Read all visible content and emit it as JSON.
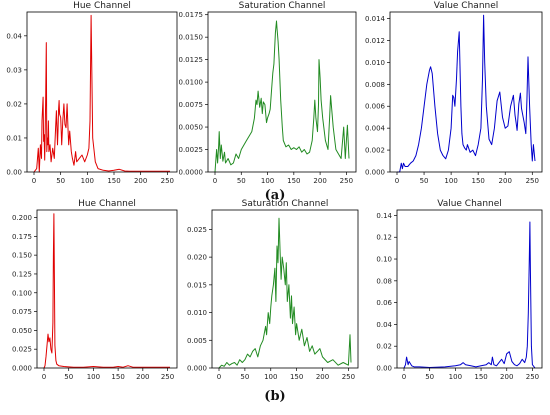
{
  "captions": {
    "top": "(a)",
    "bottom": "(b)"
  },
  "chart_data": [
    {
      "type": "line",
      "title": "Hue Channel",
      "color": "#e00000",
      "xlim": [
        0,
        255
      ],
      "ylim": [
        0,
        0.047
      ],
      "xticks": [
        0,
        50,
        100,
        150,
        200,
        250
      ],
      "yticks": [
        0.0,
        0.01,
        0.02,
        0.03,
        0.04
      ],
      "ytick_labels": [
        "0.00",
        "0.01",
        "0.02",
        "0.03",
        "0.04"
      ],
      "series": [
        {
          "x": [
            0,
            5,
            8,
            10,
            12,
            14,
            15,
            17,
            18,
            19,
            20,
            21,
            22,
            23,
            24,
            25,
            26,
            27,
            28,
            30,
            32,
            35,
            38,
            40,
            42,
            44,
            45,
            46,
            47,
            48,
            50,
            52,
            54,
            56,
            58,
            60,
            62,
            64,
            65,
            67,
            70,
            72,
            75,
            78,
            80,
            85,
            90,
            95,
            100,
            103,
            105,
            107,
            110,
            115,
            120,
            130,
            140,
            150,
            160,
            170,
            180,
            190,
            200,
            210,
            220,
            230,
            240,
            250,
            255
          ],
          "y": [
            0.0,
            0.001,
            0.007,
            0.0,
            0.008,
            0.004,
            0.015,
            0.022,
            0.009,
            0.011,
            0.0035,
            0.012,
            0.022,
            0.038,
            0.006,
            0.01,
            0.008,
            0.015,
            0.006,
            0.008,
            0.003,
            0.007,
            0.004,
            0.011,
            0.018,
            0.008,
            0.012,
            0.018,
            0.021,
            0.017,
            0.016,
            0.008,
            0.015,
            0.02,
            0.014,
            0.013,
            0.02,
            0.012,
            0.008,
            0.012,
            0.006,
            0.004,
            0.002,
            0.006,
            0.003,
            0.004,
            0.005,
            0.003,
            0.005,
            0.007,
            0.015,
            0.046,
            0.01,
            0.003,
            0.001,
            0.0005,
            0.0003,
            0.0005,
            0.0008,
            0.0003,
            0.0002,
            0.0002,
            0.0002,
            0.0002,
            0.0002,
            0.0002,
            0.0002,
            0.0002,
            0.0002
          ]
        }
      ]
    },
    {
      "type": "line",
      "title": "Saturation Channel",
      "color": "#228b22",
      "xlim": [
        0,
        255
      ],
      "ylim": [
        0,
        0.0178
      ],
      "xticks": [
        0,
        50,
        100,
        150,
        200,
        250
      ],
      "yticks": [
        0.0,
        0.0025,
        0.005,
        0.0075,
        0.01,
        0.0125,
        0.015,
        0.0175
      ],
      "ytick_labels": [
        "0.0000",
        "0.0025",
        "0.0050",
        "0.0075",
        "0.0100",
        "0.0125",
        "0.0150",
        "0.0175"
      ],
      "series": [
        {
          "x": [
            0,
            3,
            5,
            7,
            8,
            10,
            12,
            15,
            18,
            20,
            25,
            30,
            35,
            40,
            45,
            50,
            55,
            60,
            65,
            70,
            75,
            78,
            80,
            82,
            85,
            88,
            90,
            92,
            95,
            98,
            100,
            103,
            105,
            108,
            110,
            112,
            115,
            117,
            118,
            120,
            122,
            125,
            128,
            130,
            135,
            140,
            145,
            150,
            155,
            160,
            165,
            170,
            175,
            180,
            185,
            188,
            190,
            192,
            195,
            197,
            198,
            200,
            202,
            205,
            210,
            215,
            218,
            220,
            222,
            225,
            228,
            230,
            235,
            240,
            245,
            248,
            250,
            252,
            255
          ],
          "y": [
            0.0,
            0.0025,
            0.001,
            0.003,
            0.0045,
            0.0015,
            0.003,
            0.0012,
            0.0022,
            0.001,
            0.0015,
            0.0008,
            0.001,
            0.002,
            0.0015,
            0.0025,
            0.003,
            0.0035,
            0.004,
            0.0045,
            0.006,
            0.008,
            0.0075,
            0.009,
            0.0072,
            0.0082,
            0.0065,
            0.0078,
            0.0075,
            0.0055,
            0.006,
            0.0065,
            0.007,
            0.0095,
            0.011,
            0.012,
            0.0155,
            0.0168,
            0.016,
            0.0145,
            0.0125,
            0.008,
            0.005,
            0.0035,
            0.0028,
            0.003,
            0.0025,
            0.0027,
            0.0025,
            0.0028,
            0.0022,
            0.0025,
            0.002,
            0.0022,
            0.0035,
            0.006,
            0.008,
            0.006,
            0.0045,
            0.0075,
            0.0125,
            0.0105,
            0.008,
            0.006,
            0.0035,
            0.0025,
            0.006,
            0.0085,
            0.007,
            0.005,
            0.0035,
            0.0025,
            0.002,
            0.0015,
            0.005,
            0.0015,
            0.0035,
            0.0052,
            0.0015
          ]
        }
      ]
    },
    {
      "type": "line",
      "title": "Value Channel",
      "color": "#0000cc",
      "xlim": [
        0,
        255
      ],
      "ylim": [
        0,
        0.0146
      ],
      "xticks": [
        0,
        50,
        100,
        150,
        200,
        250
      ],
      "yticks": [
        0.0,
        0.002,
        0.004,
        0.006,
        0.008,
        0.01,
        0.012,
        0.014
      ],
      "ytick_labels": [
        "0.000",
        "0.002",
        "0.004",
        "0.006",
        "0.008",
        "0.010",
        "0.012",
        "0.014"
      ],
      "series": [
        {
          "x": [
            0,
            5,
            8,
            10,
            12,
            15,
            20,
            25,
            30,
            35,
            40,
            45,
            50,
            55,
            60,
            62,
            65,
            70,
            75,
            80,
            85,
            90,
            95,
            100,
            103,
            105,
            107,
            110,
            112,
            115,
            118,
            120,
            122,
            125,
            128,
            130,
            135,
            140,
            145,
            150,
            155,
            158,
            160,
            162,
            165,
            170,
            175,
            180,
            185,
            190,
            195,
            200,
            205,
            210,
            215,
            218,
            220,
            222,
            225,
            228,
            230,
            235,
            238,
            240,
            242,
            245,
            248,
            250,
            252,
            255
          ],
          "y": [
            0.0,
            0.0,
            0.0008,
            0.0003,
            0.0008,
            0.0005,
            0.0005,
            0.0008,
            0.001,
            0.0015,
            0.0025,
            0.004,
            0.006,
            0.008,
            0.0093,
            0.0096,
            0.009,
            0.006,
            0.0035,
            0.002,
            0.0015,
            0.0012,
            0.002,
            0.004,
            0.007,
            0.0068,
            0.006,
            0.0085,
            0.011,
            0.0128,
            0.006,
            0.0035,
            0.0025,
            0.0022,
            0.002,
            0.0025,
            0.0018,
            0.002,
            0.0015,
            0.0025,
            0.004,
            0.0085,
            0.0143,
            0.01,
            0.006,
            0.003,
            0.0025,
            0.004,
            0.0065,
            0.0073,
            0.005,
            0.004,
            0.0042,
            0.006,
            0.007,
            0.0052,
            0.0045,
            0.0038,
            0.0062,
            0.0072,
            0.0058,
            0.0045,
            0.0035,
            0.0065,
            0.0105,
            0.006,
            0.0025,
            0.001,
            0.0025,
            0.001
          ]
        }
      ]
    },
    {
      "type": "line",
      "title": "Hue Channel",
      "color": "#e00000",
      "xlim": [
        0,
        255
      ],
      "ylim": [
        0,
        0.21
      ],
      "xticks": [
        0,
        50,
        100,
        150,
        200,
        250
      ],
      "yticks": [
        0.0,
        0.025,
        0.05,
        0.075,
        0.1,
        0.125,
        0.15,
        0.175,
        0.2
      ],
      "ytick_labels": [
        "0.000",
        "0.025",
        "0.050",
        "0.075",
        "0.100",
        "0.125",
        "0.150",
        "0.175",
        "0.200"
      ],
      "series": [
        {
          "x": [
            0,
            2,
            4,
            6,
            8,
            10,
            12,
            14,
            16,
            18,
            19,
            20,
            21,
            22,
            24,
            26,
            30,
            40,
            50,
            60,
            80,
            100,
            120,
            140,
            150,
            160,
            170,
            180,
            200,
            220,
            240,
            255
          ],
          "y": [
            0.0,
            0.003,
            0.015,
            0.03,
            0.045,
            0.035,
            0.04,
            0.025,
            0.02,
            0.06,
            0.15,
            0.205,
            0.12,
            0.03,
            0.01,
            0.005,
            0.003,
            0.002,
            0.0015,
            0.001,
            0.001,
            0.002,
            0.001,
            0.001,
            0.002,
            0.001,
            0.003,
            0.001,
            0.001,
            0.001,
            0.001,
            0.001
          ]
        }
      ]
    },
    {
      "type": "line",
      "title": "Saturation Channel",
      "color": "#228b22",
      "xlim": [
        0,
        255
      ],
      "ylim": [
        0,
        0.0285
      ],
      "xticks": [
        0,
        50,
        100,
        150,
        200,
        250
      ],
      "yticks": [
        0.0,
        0.005,
        0.01,
        0.015,
        0.02,
        0.025
      ],
      "ytick_labels": [
        "0.000",
        "0.005",
        "0.010",
        "0.015",
        "0.020",
        "0.025"
      ],
      "series": [
        {
          "x": [
            0,
            5,
            10,
            15,
            20,
            25,
            30,
            35,
            40,
            45,
            50,
            55,
            60,
            65,
            70,
            75,
            80,
            85,
            90,
            92,
            95,
            98,
            100,
            102,
            105,
            108,
            110,
            112,
            114,
            116,
            118,
            120,
            122,
            125,
            128,
            130,
            132,
            135,
            138,
            140,
            142,
            145,
            148,
            150,
            155,
            160,
            165,
            170,
            175,
            180,
            185,
            190,
            195,
            200,
            210,
            220,
            230,
            240,
            250,
            253,
            255
          ],
          "y": [
            0.0,
            0.0005,
            0.0003,
            0.001,
            0.0005,
            0.0008,
            0.001,
            0.0005,
            0.0015,
            0.001,
            0.0015,
            0.0025,
            0.002,
            0.003,
            0.0035,
            0.002,
            0.004,
            0.005,
            0.0075,
            0.006,
            0.01,
            0.008,
            0.011,
            0.013,
            0.015,
            0.018,
            0.012,
            0.022,
            0.019,
            0.027,
            0.021,
            0.016,
            0.02,
            0.018,
            0.015,
            0.019,
            0.012,
            0.015,
            0.009,
            0.013,
            0.008,
            0.011,
            0.006,
            0.008,
            0.005,
            0.007,
            0.004,
            0.0055,
            0.003,
            0.004,
            0.0025,
            0.003,
            0.0035,
            0.002,
            0.001,
            0.0015,
            0.0005,
            0.001,
            0.0005,
            0.006,
            0.001
          ]
        }
      ]
    },
    {
      "type": "line",
      "title": "Value Channel",
      "color": "#0000cc",
      "xlim": [
        0,
        255
      ],
      "ylim": [
        0,
        0.145
      ],
      "xticks": [
        0,
        50,
        100,
        150,
        200,
        250
      ],
      "yticks": [
        0.0,
        0.02,
        0.04,
        0.06,
        0.08,
        0.1,
        0.12,
        0.14
      ],
      "ytick_labels": [
        "0.00",
        "0.02",
        "0.04",
        "0.06",
        "0.08",
        "0.10",
        "0.12",
        "0.14"
      ],
      "series": [
        {
          "x": [
            0,
            3,
            5,
            8,
            10,
            15,
            20,
            30,
            50,
            80,
            100,
            110,
            115,
            120,
            130,
            140,
            150,
            160,
            165,
            170,
            172,
            175,
            180,
            185,
            190,
            195,
            200,
            205,
            210,
            215,
            220,
            225,
            230,
            235,
            238,
            240,
            242,
            244,
            245,
            246,
            248,
            250,
            255
          ],
          "y": [
            0.0,
            0.003,
            0.01,
            0.003,
            0.006,
            0.002,
            0.001,
            0.001,
            0.0005,
            0.001,
            0.002,
            0.003,
            0.005,
            0.003,
            0.002,
            0.001,
            0.002,
            0.003,
            0.005,
            0.003,
            0.01,
            0.003,
            0.002,
            0.005,
            0.008,
            0.004,
            0.013,
            0.015,
            0.006,
            0.003,
            0.002,
            0.004,
            0.008,
            0.005,
            0.01,
            0.02,
            0.05,
            0.1,
            0.134,
            0.09,
            0.02,
            0.003,
            0.0
          ]
        }
      ]
    }
  ]
}
